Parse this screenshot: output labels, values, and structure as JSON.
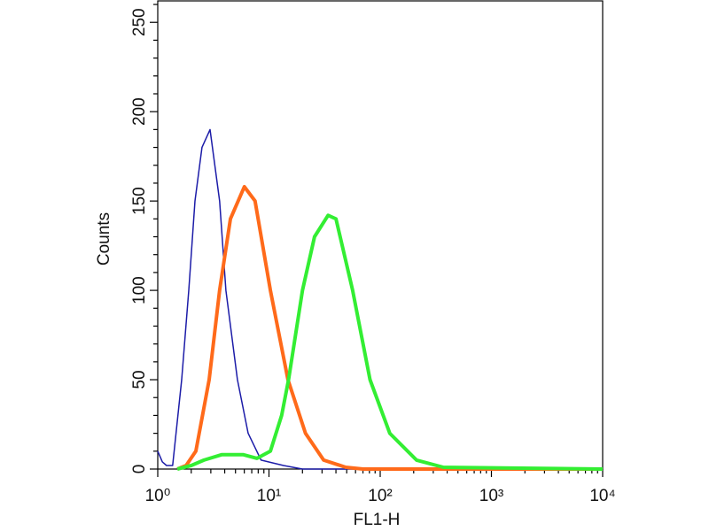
{
  "chart_data": {
    "type": "histogram-line",
    "xlabel": "FL1-H",
    "ylabel": "Counts",
    "log_x": true,
    "xlim": [
      1,
      10000
    ],
    "ylim": [
      0,
      262
    ],
    "xticks": [
      {
        "value": 1,
        "label": "10⁰"
      },
      {
        "value": 10,
        "label": "10¹"
      },
      {
        "value": 100,
        "label": "10²"
      },
      {
        "value": 1000,
        "label": "10³"
      },
      {
        "value": 10000,
        "label": "10⁴"
      }
    ],
    "yticks": [
      0,
      50,
      100,
      150,
      200,
      250
    ],
    "series": [
      {
        "color": "#1c1ca8",
        "width": 1.5,
        "x": [
          1,
          1.1,
          1.2,
          1.36,
          1.64,
          1.9,
          2.16,
          2.5,
          2.95,
          3.6,
          4.1,
          5.2,
          6.5,
          8.5,
          13.5,
          20,
          10000
        ],
        "values": [
          10,
          4,
          2,
          2,
          50,
          100,
          150,
          180,
          190,
          150,
          100,
          50,
          20,
          5,
          2,
          0,
          0
        ]
      },
      {
        "color": "#ff6a1a",
        "width": 4,
        "x": [
          1.5,
          1.8,
          2.2,
          2.9,
          3.6,
          4.5,
          6,
          7.5,
          10.3,
          14.8,
          21.3,
          31,
          49,
          70,
          10000
        ],
        "values": [
          0,
          2,
          10,
          50,
          100,
          140,
          158,
          150,
          100,
          50,
          20,
          5,
          1,
          0,
          0
        ]
      },
      {
        "color": "#33ee33",
        "width": 4,
        "x": [
          1.5,
          2,
          2.6,
          3.75,
          5.9,
          7.8,
          10.3,
          13,
          15,
          20,
          25.7,
          34,
          40,
          56.5,
          81,
          122,
          212,
          370,
          10000
        ],
        "values": [
          0,
          2,
          5,
          8,
          8,
          6,
          10,
          30,
          50,
          100,
          130,
          142,
          140,
          100,
          50,
          20,
          5,
          1,
          0
        ]
      }
    ]
  }
}
